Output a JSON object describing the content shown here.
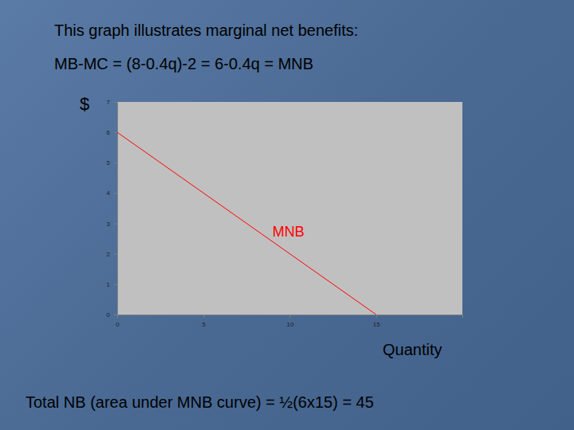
{
  "chart_data": {
    "type": "line",
    "title": "This graph illustrates marginal net benefits:",
    "subtitle": "MB-MC = (8-0.4q)-2 = 6-0.4q = MNB",
    "y_label": "$",
    "x_label": "Quantity",
    "annotations": [
      "Total NB (area under MNB curve) = ½(6x15) = 45"
    ],
    "x": [
      0,
      15
    ],
    "series": [
      {
        "name": "MNB",
        "color": "#ff0000",
        "values": [
          6,
          0
        ]
      }
    ],
    "xlim": [
      0,
      20
    ],
    "xticks": [
      0,
      5,
      10,
      15
    ],
    "ylim": [
      0,
      7
    ],
    "yticks": [
      0,
      1,
      2,
      3,
      4,
      5,
      6,
      7
    ],
    "grid": false
  }
}
